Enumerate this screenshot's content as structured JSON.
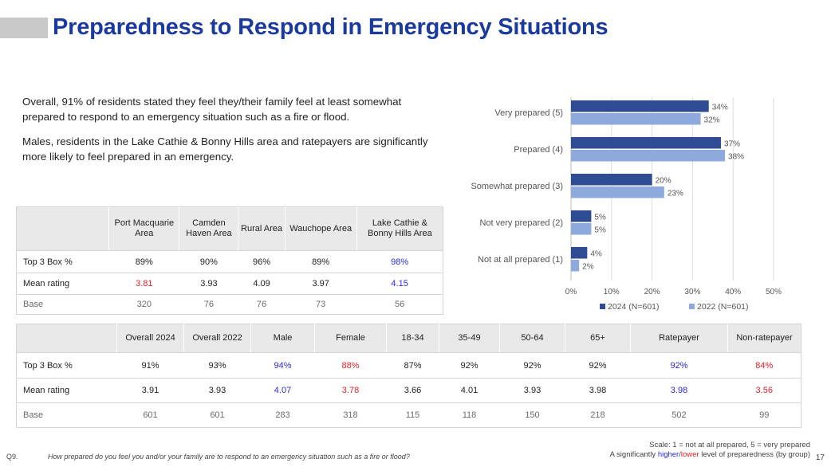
{
  "title": "Preparedness to Respond in Emergency Situations",
  "intro": [
    "Overall, 91% of residents stated they feel they/their family feel at least somewhat prepared to respond to an emergency situation such as a fire or flood.",
    "Males, residents in the Lake Cathie & Bonny Hills area and ratepayers are significantly more likely to feel prepared in an emergency."
  ],
  "chart_data": {
    "type": "bar",
    "orientation": "horizontal",
    "categories": [
      "Very prepared (5)",
      "Prepared (4)",
      "Somewhat prepared (3)",
      "Not very prepared (2)",
      "Not at all prepared (1)"
    ],
    "series": [
      {
        "name": "2024 (N=601)",
        "color": "#2e4b93",
        "values": [
          34,
          37,
          20,
          5,
          4
        ],
        "labels": [
          "34%",
          "37%",
          "20%",
          "5%",
          "4%"
        ]
      },
      {
        "name": "2022 (N=601)",
        "color": "#8eaadc",
        "values": [
          32,
          38,
          23,
          5,
          2
        ],
        "labels": [
          "32%",
          "38%",
          "23%",
          "5%",
          "2%"
        ]
      }
    ],
    "xlim": [
      0,
      50
    ],
    "xticks": [
      "0%",
      "10%",
      "20%",
      "30%",
      "40%",
      "50%"
    ],
    "grid": true,
    "legend": "bottom"
  },
  "table1": {
    "headers": [
      "Port Macquarie Area",
      "Camden Haven Area",
      "Rural Area",
      "Wauchope Area",
      "Lake Cathie & Bonny Hills Area"
    ],
    "rows": [
      {
        "label": "Top 3 Box %",
        "cells": [
          {
            "v": "89%",
            "s": ""
          },
          {
            "v": "90%",
            "s": ""
          },
          {
            "v": "96%",
            "s": ""
          },
          {
            "v": "89%",
            "s": ""
          },
          {
            "v": "98%",
            "s": "hi"
          }
        ]
      },
      {
        "label": "Mean rating",
        "cells": [
          {
            "v": "3.81",
            "s": "lo"
          },
          {
            "v": "3.93",
            "s": ""
          },
          {
            "v": "4.09",
            "s": ""
          },
          {
            "v": "3.97",
            "s": ""
          },
          {
            "v": "4.15",
            "s": "hi"
          }
        ]
      },
      {
        "label": "Base",
        "cells": [
          {
            "v": "320",
            "s": ""
          },
          {
            "v": "76",
            "s": ""
          },
          {
            "v": "76",
            "s": ""
          },
          {
            "v": "73",
            "s": ""
          },
          {
            "v": "56",
            "s": ""
          }
        ]
      }
    ]
  },
  "table2": {
    "headers": [
      "Overall 2024",
      "Overall 2022",
      "Male",
      "Female",
      "18-34",
      "35-49",
      "50-64",
      "65+",
      "Ratepayer",
      "Non-ratepayer"
    ],
    "rows": [
      {
        "label": "Top 3 Box %",
        "cells": [
          {
            "v": "91%",
            "s": ""
          },
          {
            "v": "93%",
            "s": ""
          },
          {
            "v": "94%",
            "s": "hi"
          },
          {
            "v": "88%",
            "s": "lo"
          },
          {
            "v": "87%",
            "s": ""
          },
          {
            "v": "92%",
            "s": ""
          },
          {
            "v": "92%",
            "s": ""
          },
          {
            "v": "92%",
            "s": ""
          },
          {
            "v": "92%",
            "s": "hi"
          },
          {
            "v": "84%",
            "s": "lo"
          }
        ]
      },
      {
        "label": "Mean rating",
        "cells": [
          {
            "v": "3.91",
            "s": ""
          },
          {
            "v": "3.93",
            "s": ""
          },
          {
            "v": "4.07",
            "s": "hi"
          },
          {
            "v": "3.78",
            "s": "lo"
          },
          {
            "v": "3.66",
            "s": ""
          },
          {
            "v": "4.01",
            "s": ""
          },
          {
            "v": "3.93",
            "s": ""
          },
          {
            "v": "3.98",
            "s": ""
          },
          {
            "v": "3.98",
            "s": "hi"
          },
          {
            "v": "3.56",
            "s": "lo"
          }
        ]
      },
      {
        "label": "Base",
        "cells": [
          {
            "v": "601",
            "s": ""
          },
          {
            "v": "601",
            "s": ""
          },
          {
            "v": "283",
            "s": ""
          },
          {
            "v": "318",
            "s": ""
          },
          {
            "v": "115",
            "s": ""
          },
          {
            "v": "118",
            "s": ""
          },
          {
            "v": "150",
            "s": ""
          },
          {
            "v": "218",
            "s": ""
          },
          {
            "v": "502",
            "s": ""
          },
          {
            "v": "99",
            "s": ""
          }
        ]
      }
    ]
  },
  "footer": {
    "question_number": "Q9.",
    "question_text": "How prepared do you feel you and/or your family are to respond to an emergency situation such as a fire or flood?",
    "scale_note": "Scale: 1 = not at all prepared, 5 = very prepared",
    "sig_prefix": "A significantly ",
    "sig_higher": "higher",
    "sig_slash": "/",
    "sig_lower": "lower",
    "sig_suffix": " level of preparedness (by group)",
    "page_number": "17"
  },
  "colors": {
    "title": "#1a3a9e",
    "higher": "#2a2adc",
    "lower": "#e0202b",
    "series_2024": "#2e4b93",
    "series_2022": "#8eaadc"
  }
}
